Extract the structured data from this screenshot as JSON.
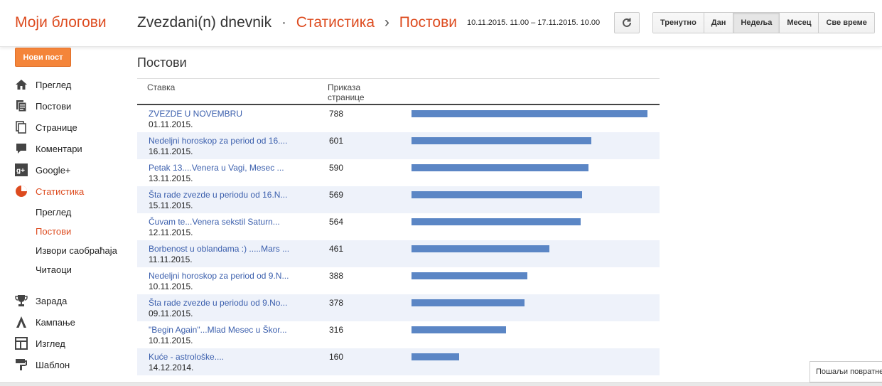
{
  "header": {
    "brand": "Моји блогови",
    "blog_name": "Zvezdani(n) dnevnik",
    "sep1": "·",
    "crumb_stats": "Статистика",
    "sep2": "›",
    "crumb_posts": "Постови",
    "date_range": "10.11.2015. 11.00 – 17.11.2015. 10.00",
    "refresh_icon": "refresh-icon",
    "ranges": [
      {
        "label": "Тренутно",
        "active": false
      },
      {
        "label": "Дан",
        "active": false
      },
      {
        "label": "Недеља",
        "active": true
      },
      {
        "label": "Месец",
        "active": false
      },
      {
        "label": "Све време",
        "active": false
      }
    ]
  },
  "sidebar": {
    "new_post": "Нови пост",
    "items": [
      {
        "label": "Преглед",
        "icon": "home-icon"
      },
      {
        "label": "Постови",
        "icon": "posts-icon"
      },
      {
        "label": "Странице",
        "icon": "pages-icon"
      },
      {
        "label": "Коментари",
        "icon": "comment-icon"
      },
      {
        "label": "Google+",
        "icon": "google-plus-icon"
      },
      {
        "label": "Статистика",
        "icon": "stats-icon",
        "active": true
      },
      {
        "label": "Зарада",
        "icon": "trophy-icon"
      },
      {
        "label": "Кампање",
        "icon": "campaign-icon"
      },
      {
        "label": "Изглед",
        "icon": "layout-icon"
      },
      {
        "label": "Шаблон",
        "icon": "template-icon"
      }
    ],
    "stats_sub": [
      {
        "label": "Преглед",
        "active": false
      },
      {
        "label": "Постови",
        "active": true
      },
      {
        "label": "Извори саобраћаја",
        "active": false
      },
      {
        "label": "Читаоци",
        "active": false
      }
    ]
  },
  "main": {
    "section_title": "Постови",
    "col_item": "Ставка",
    "col_views_line1": "Приказа",
    "col_views_line2": "странице",
    "max_views": 788,
    "rows": [
      {
        "title": "ZVEZDE U NOVEMBRU",
        "date": "01.11.2015.",
        "views": 788
      },
      {
        "title": "Nedeljni horoskop za period od 16....",
        "date": "16.11.2015.",
        "views": 601
      },
      {
        "title": "Petak 13....Venera u Vagi, Mesec ...",
        "date": "13.11.2015.",
        "views": 590
      },
      {
        "title": "Šta rade zvezde u periodu od 16.N...",
        "date": "15.11.2015.",
        "views": 569
      },
      {
        "title": "Čuvam te...Venera sekstil Saturn...",
        "date": "12.11.2015.",
        "views": 564
      },
      {
        "title": "Borbenost u oblandama :) .....Mars ...",
        "date": "11.11.2015.",
        "views": 461
      },
      {
        "title": "Nedeljni horoskop za period od 9.N...",
        "date": "10.11.2015.",
        "views": 388
      },
      {
        "title": "Šta rade zvezde u periodu od 9.No...",
        "date": "09.11.2015.",
        "views": 378
      },
      {
        "title": "\"Begin Again\"...Mlad Mesec u Škor...",
        "date": "10.11.2015.",
        "views": 316
      },
      {
        "title": "Kuće - astrološke....",
        "date": "14.12.2014.",
        "views": 160
      }
    ]
  },
  "feedback": "Пошаљи повратне",
  "colors": {
    "accent": "#dd4b1f",
    "bar": "#5b86c5",
    "link": "#3b5fad"
  }
}
